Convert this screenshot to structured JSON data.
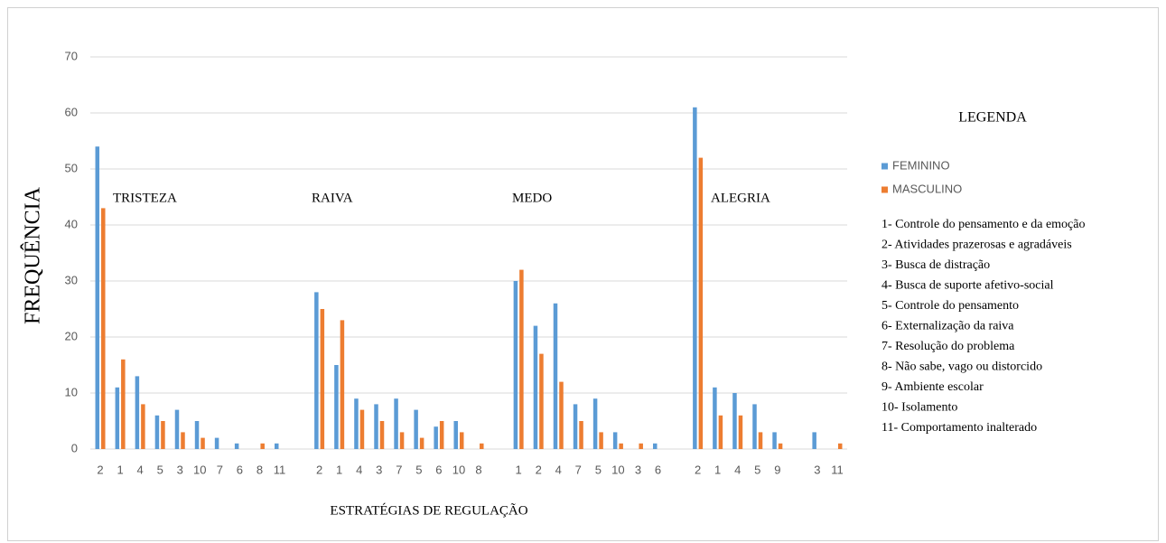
{
  "chart_data": {
    "type": "bar",
    "y_label": "FREQUÊNCIA",
    "x_label": "ESTRATÉGIAS DE REGULAÇÃO",
    "annotations": [
      "TRISTEZA",
      "RAIVA",
      "MEDO",
      "ALEGRIA"
    ],
    "legend_title": "LEGENDA",
    "legend_key": [
      "1- Controle do pensamento e da emoção",
      "2- Atividades prazerosas e agradáveis",
      "3- Busca de distração",
      "4- Busca de suporte afetivo-social",
      "5- Controle do pensamento",
      "6- Externalização da raiva",
      "7- Resolução do problema",
      "8- Não sabe, vago ou distorcido",
      "9- Ambiente escolar",
      "10- Isolamento",
      "11- Comportamento inalterado"
    ],
    "categories": [
      "2",
      "1",
      "4",
      "5",
      "3",
      "10",
      "7",
      "6",
      "8",
      "11",
      null,
      "2",
      "1",
      "4",
      "3",
      "7",
      "5",
      "6",
      "10",
      "8",
      null,
      "1",
      "2",
      "4",
      "7",
      "5",
      "10",
      "3",
      "6",
      null,
      "2",
      "1",
      "4",
      "5",
      "9",
      null,
      "3",
      "11"
    ],
    "series": [
      {
        "name": "FEMININO",
        "color": "#5b9bd5",
        "values": [
          54,
          11,
          13,
          6,
          7,
          5,
          2,
          1,
          0,
          1,
          null,
          28,
          15,
          9,
          8,
          9,
          7,
          4,
          5,
          0,
          null,
          30,
          22,
          26,
          8,
          9,
          3,
          0,
          1,
          null,
          61,
          11,
          10,
          8,
          3,
          null,
          3,
          0
        ]
      },
      {
        "name": "MASCULINO",
        "color": "#ed7d31",
        "values": [
          43,
          16,
          8,
          5,
          3,
          2,
          0,
          0,
          1,
          0,
          null,
          25,
          23,
          7,
          5,
          3,
          2,
          5,
          3,
          1,
          null,
          32,
          17,
          12,
          5,
          3,
          1,
          1,
          0,
          null,
          52,
          6,
          6,
          3,
          1,
          null,
          0,
          1
        ]
      }
    ],
    "ylim": [
      0,
      70
    ],
    "yticks": [
      0,
      10,
      20,
      30,
      40,
      50,
      60,
      70
    ],
    "grid": true
  }
}
